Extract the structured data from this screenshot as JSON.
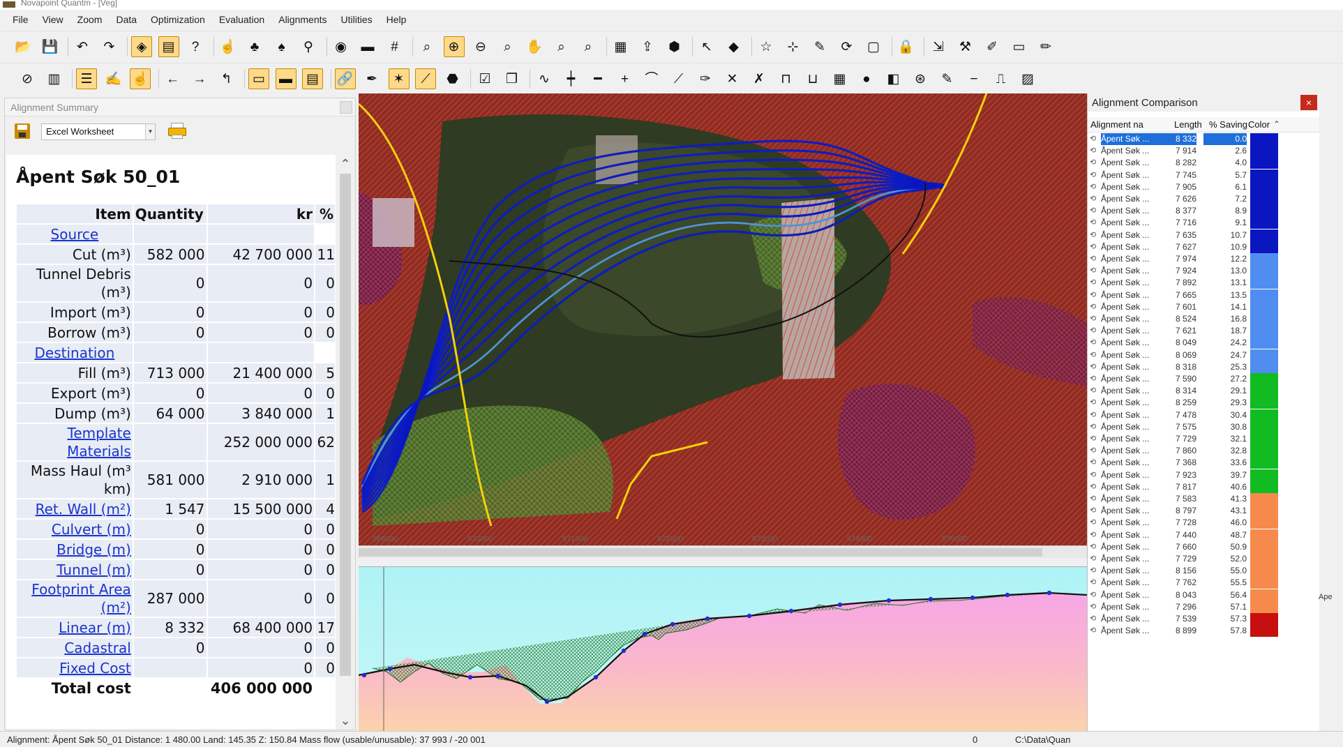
{
  "window": {
    "title": "Novapoint Quantm - [Veg]"
  },
  "menu": [
    "File",
    "View",
    "Zoom",
    "Data",
    "Optimization",
    "Evaluation",
    "Alignments",
    "Utilities",
    "Help"
  ],
  "toolbar1_icons": [
    {
      "name": "open-folder-icon",
      "glyph": "📂"
    },
    {
      "name": "save-disk-icon",
      "glyph": "💾"
    },
    {
      "name": "undo-icon",
      "glyph": "↶"
    },
    {
      "name": "redo-icon",
      "glyph": "↷"
    },
    {
      "name": "layers-icon",
      "glyph": "◈",
      "active": true
    },
    {
      "name": "properties-icon",
      "glyph": "▤",
      "active": true
    },
    {
      "name": "help-icon",
      "glyph": "?"
    },
    {
      "name": "pointer-hand-icon",
      "glyph": "☝"
    },
    {
      "name": "tree-icon",
      "glyph": "♣"
    },
    {
      "name": "tree-add-icon",
      "glyph": "♠"
    },
    {
      "name": "network-icon",
      "glyph": "⚲"
    },
    {
      "name": "zoom-eye-icon",
      "glyph": "◉"
    },
    {
      "name": "ruler-icon",
      "glyph": "▬"
    },
    {
      "name": "grid-icon",
      "glyph": "#"
    },
    {
      "name": "zoom-window-icon",
      "glyph": "⌕"
    },
    {
      "name": "zoom-in-icon",
      "glyph": "⊕",
      "active": true
    },
    {
      "name": "zoom-out-icon",
      "glyph": "⊖"
    },
    {
      "name": "zoom-small-icon",
      "glyph": "⌕"
    },
    {
      "name": "pan-hand-icon",
      "glyph": "✋"
    },
    {
      "name": "zoom-extent-icon",
      "glyph": "⌕"
    },
    {
      "name": "zoom-previous-icon",
      "glyph": "⌕"
    },
    {
      "name": "report-icon",
      "glyph": "▦"
    },
    {
      "name": "export-icon",
      "glyph": "⇪"
    },
    {
      "name": "box-3d-icon",
      "glyph": "⬢"
    },
    {
      "name": "select-arrow-icon",
      "glyph": "↖"
    },
    {
      "name": "eraser-icon",
      "glyph": "◆"
    },
    {
      "name": "star-icon",
      "glyph": "☆"
    },
    {
      "name": "target-icon",
      "glyph": "⊹"
    },
    {
      "name": "pencil-line-icon",
      "glyph": "✎"
    },
    {
      "name": "rotate-icon",
      "glyph": "⟳"
    },
    {
      "name": "frame-icon",
      "glyph": "▢"
    },
    {
      "name": "lock-icon",
      "glyph": "🔒"
    },
    {
      "name": "import-icon",
      "glyph": "⇲"
    },
    {
      "name": "tools-icon",
      "glyph": "⚒"
    },
    {
      "name": "draw-pen-icon",
      "glyph": "✐"
    },
    {
      "name": "blank-sheet-icon",
      "glyph": "▭"
    },
    {
      "name": "ruler-pencil-icon",
      "glyph": "✏"
    }
  ],
  "toolbar2_icons": [
    {
      "name": "no-entry-icon",
      "glyph": "⊘"
    },
    {
      "name": "notebook-icon",
      "glyph": "▥"
    },
    {
      "name": "list-icon",
      "glyph": "☰",
      "active": true
    },
    {
      "name": "pen-doc-icon",
      "glyph": "✍"
    },
    {
      "name": "pointer-doc-icon",
      "glyph": "☝",
      "active": true
    },
    {
      "name": "arrow-left-icon",
      "glyph": "←"
    },
    {
      "name": "arrow-right-icon",
      "glyph": "→"
    },
    {
      "name": "cursor-line-icon",
      "glyph": "↰"
    },
    {
      "name": "profile-panel-icon",
      "glyph": "▭",
      "active": true
    },
    {
      "name": "section-panel-icon",
      "glyph": "▬",
      "active": true
    },
    {
      "name": "plan-panel-icon",
      "glyph": "▤",
      "active": true
    },
    {
      "name": "link-icon",
      "glyph": "🔗",
      "active": true
    },
    {
      "name": "curve-pen-icon",
      "glyph": "✒"
    },
    {
      "name": "multi-alignment-icon",
      "glyph": "✶",
      "active": true
    },
    {
      "name": "alignment-node-icon",
      "glyph": "⟋",
      "active": true
    },
    {
      "name": "surface-icon",
      "glyph": "⬣"
    },
    {
      "name": "check-doc-icon",
      "glyph": "☑"
    },
    {
      "name": "copy-doc-icon",
      "glyph": "❐"
    },
    {
      "name": "wave-line-icon",
      "glyph": "∿"
    },
    {
      "name": "cross-line-icon",
      "glyph": "┿"
    },
    {
      "name": "straight-line-icon",
      "glyph": "━"
    },
    {
      "name": "plus-icon",
      "glyph": "+"
    },
    {
      "name": "arc-icon",
      "glyph": "⌒"
    },
    {
      "name": "slope-icon",
      "glyph": "⟋"
    },
    {
      "name": "diagonal-pen-icon",
      "glyph": "✑"
    },
    {
      "name": "cross-icon",
      "glyph": "✕"
    },
    {
      "name": "x-mark-icon",
      "glyph": "✗"
    },
    {
      "name": "bridge-icon",
      "glyph": "⊓"
    },
    {
      "name": "tunnel-icon",
      "glyph": "⊔"
    },
    {
      "name": "building-icon",
      "glyph": "▦"
    },
    {
      "name": "blob-icon",
      "glyph": "●"
    },
    {
      "name": "wall-icon",
      "glyph": "◧"
    },
    {
      "name": "compass-icon",
      "glyph": "⊛"
    },
    {
      "name": "pencil-small-icon",
      "glyph": "✎"
    },
    {
      "name": "minus-icon",
      "glyph": "−"
    },
    {
      "name": "step-line-icon",
      "glyph": "⎍"
    },
    {
      "name": "gradient-icon",
      "glyph": "▨"
    }
  ],
  "left_panel": {
    "header": "Alignment Summary",
    "format": "Excel Worksheet",
    "title": "Åpent Søk 50_01",
    "columns": {
      "item": "Item",
      "quantity": "Quantity",
      "kr": "kr",
      "pct": "%"
    },
    "rows": [
      {
        "item": "Source",
        "quantity": "",
        "kr": "",
        "pct": "",
        "link": true,
        "section": true
      },
      {
        "item": "Cut (m³)",
        "quantity": "582 000",
        "kr": "42 700 000",
        "pct": "11"
      },
      {
        "item": "Tunnel Debris (m³)",
        "quantity": "0",
        "kr": "0",
        "pct": "0"
      },
      {
        "item": "Import (m³)",
        "quantity": "0",
        "kr": "0",
        "pct": "0"
      },
      {
        "item": "Borrow (m³)",
        "quantity": "0",
        "kr": "0",
        "pct": "0"
      },
      {
        "item": "Destination",
        "quantity": "",
        "kr": "",
        "pct": "",
        "link": true,
        "section": true
      },
      {
        "item": "Fill (m³)",
        "quantity": "713 000",
        "kr": "21 400 000",
        "pct": "5"
      },
      {
        "item": "Export (m³)",
        "quantity": "0",
        "kr": "0",
        "pct": "0"
      },
      {
        "item": "Dump (m³)",
        "quantity": "64 000",
        "kr": "3 840 000",
        "pct": "1"
      },
      {
        "item": "Template Materials",
        "quantity": "",
        "kr": "252 000 000",
        "pct": "62",
        "link": true
      },
      {
        "item": "Mass Haul (m³ km)",
        "quantity": "581 000",
        "kr": "2 910 000",
        "pct": "1"
      },
      {
        "item": "Ret. Wall (m²)",
        "quantity": "1 547",
        "kr": "15 500 000",
        "pct": "4",
        "link": true
      },
      {
        "item": "Culvert (m)",
        "quantity": "0",
        "kr": "0",
        "pct": "0",
        "link": true
      },
      {
        "item": "Bridge (m)",
        "quantity": "0",
        "kr": "0",
        "pct": "0",
        "link": true
      },
      {
        "item": "Tunnel (m)",
        "quantity": "0",
        "kr": "0",
        "pct": "0",
        "link": true
      },
      {
        "item": "Footprint Area (m²)",
        "quantity": "287 000",
        "kr": "0",
        "pct": "0",
        "link": true
      },
      {
        "item": "Linear (m)",
        "quantity": "8 332",
        "kr": "68 400 000",
        "pct": "17",
        "link": true
      },
      {
        "item": "Cadastral",
        "quantity": "0",
        "kr": "0",
        "pct": "0",
        "link": true
      },
      {
        "item": "Fixed Cost",
        "quantity": "",
        "kr": "0",
        "pct": "0",
        "link": true
      }
    ],
    "total": {
      "label": "Total cost",
      "value": "406 000 000"
    }
  },
  "map": {
    "x_ticks": [
      "568000",
      "570000",
      "571000",
      "572000",
      "573000",
      "574000",
      "575000"
    ]
  },
  "comparison": {
    "title": "Alignment Comparison",
    "close_label": "×",
    "columns": {
      "name": "Alignment na",
      "length": "Length",
      "saving": "% Saving",
      "color": "Color"
    },
    "colors": {
      "dark_blue": "#0a16c0",
      "light_blue": "#4f8ef0",
      "green": "#11bb22",
      "orange": "#f58a4c",
      "red": "#c80f0f"
    },
    "rows": [
      {
        "name": "Åpent Søk ...",
        "length": "8 332",
        "saving": "0.0",
        "color": "dark_blue",
        "selected": true
      },
      {
        "name": "Åpent Søk ...",
        "length": "7 914",
        "saving": "2.6",
        "color": "dark_blue"
      },
      {
        "name": "Åpent Søk ...",
        "length": "8 282",
        "saving": "4.0",
        "color": "dark_blue"
      },
      {
        "name": "Åpent Søk ...",
        "length": "7 745",
        "saving": "5.7",
        "color": "dark_blue"
      },
      {
        "name": "Åpent Søk ...",
        "length": "7 905",
        "saving": "6.1",
        "color": "dark_blue"
      },
      {
        "name": "Åpent Søk ...",
        "length": "7 626",
        "saving": "7.2",
        "color": "dark_blue"
      },
      {
        "name": "Åpent Søk ...",
        "length": "8 377",
        "saving": "8.9",
        "color": "dark_blue"
      },
      {
        "name": "Åpent Søk ...",
        "length": "7 716",
        "saving": "9.1",
        "color": "dark_blue"
      },
      {
        "name": "Åpent Søk ...",
        "length": "7 635",
        "saving": "10.7",
        "color": "dark_blue"
      },
      {
        "name": "Åpent Søk ...",
        "length": "7 627",
        "saving": "10.9",
        "color": "dark_blue"
      },
      {
        "name": "Åpent Søk ...",
        "length": "7 974",
        "saving": "12.2",
        "color": "light_blue"
      },
      {
        "name": "Åpent Søk ...",
        "length": "7 924",
        "saving": "13.0",
        "color": "light_blue"
      },
      {
        "name": "Åpent Søk ...",
        "length": "7 892",
        "saving": "13.1",
        "color": "light_blue"
      },
      {
        "name": "Åpent Søk ...",
        "length": "7 665",
        "saving": "13.5",
        "color": "light_blue"
      },
      {
        "name": "Åpent Søk ...",
        "length": "7 601",
        "saving": "14.1",
        "color": "light_blue"
      },
      {
        "name": "Åpent Søk ...",
        "length": "8 524",
        "saving": "16.8",
        "color": "light_blue"
      },
      {
        "name": "Åpent Søk ...",
        "length": "7 621",
        "saving": "18.7",
        "color": "light_blue"
      },
      {
        "name": "Åpent Søk ...",
        "length": "8 049",
        "saving": "24.2",
        "color": "light_blue"
      },
      {
        "name": "Åpent Søk ...",
        "length": "8 069",
        "saving": "24.7",
        "color": "light_blue"
      },
      {
        "name": "Åpent Søk ...",
        "length": "8 318",
        "saving": "25.3",
        "color": "light_blue"
      },
      {
        "name": "Åpent Søk ...",
        "length": "7 590",
        "saving": "27.2",
        "color": "green"
      },
      {
        "name": "Åpent Søk ...",
        "length": "8 314",
        "saving": "29.1",
        "color": "green"
      },
      {
        "name": "Åpent Søk ...",
        "length": "8 259",
        "saving": "29.3",
        "color": "green"
      },
      {
        "name": "Åpent Søk ...",
        "length": "7 478",
        "saving": "30.4",
        "color": "green"
      },
      {
        "name": "Åpent Søk ...",
        "length": "7 575",
        "saving": "30.8",
        "color": "green"
      },
      {
        "name": "Åpent Søk ...",
        "length": "7 729",
        "saving": "32.1",
        "color": "green"
      },
      {
        "name": "Åpent Søk ...",
        "length": "7 860",
        "saving": "32.8",
        "color": "green"
      },
      {
        "name": "Åpent Søk ...",
        "length": "7 368",
        "saving": "33.6",
        "color": "green"
      },
      {
        "name": "Åpent Søk ...",
        "length": "7 923",
        "saving": "39.7",
        "color": "green"
      },
      {
        "name": "Åpent Søk ...",
        "length": "7 817",
        "saving": "40.6",
        "color": "green"
      },
      {
        "name": "Åpent Søk ...",
        "length": "7 583",
        "saving": "41.3",
        "color": "orange"
      },
      {
        "name": "Åpent Søk ...",
        "length": "8 797",
        "saving": "43.1",
        "color": "orange"
      },
      {
        "name": "Åpent Søk ...",
        "length": "7 728",
        "saving": "46.0",
        "color": "orange"
      },
      {
        "name": "Åpent Søk ...",
        "length": "7 440",
        "saving": "48.7",
        "color": "orange"
      },
      {
        "name": "Åpent Søk ...",
        "length": "7 660",
        "saving": "50.9",
        "color": "orange"
      },
      {
        "name": "Åpent Søk ...",
        "length": "7 729",
        "saving": "52.0",
        "color": "orange"
      },
      {
        "name": "Åpent Søk ...",
        "length": "8 156",
        "saving": "55.0",
        "color": "orange"
      },
      {
        "name": "Åpent Søk ...",
        "length": "7 762",
        "saving": "55.5",
        "color": "orange"
      },
      {
        "name": "Åpent Søk ...",
        "length": "8 043",
        "saving": "56.4",
        "color": "orange"
      },
      {
        "name": "Åpent Søk ...",
        "length": "7 296",
        "saving": "57.1",
        "color": "orange"
      },
      {
        "name": "Åpent Søk ...",
        "length": "7 539",
        "saving": "57.3",
        "color": "red"
      },
      {
        "name": "Åpent Søk ...",
        "length": "8 899",
        "saving": "57.8",
        "color": "red"
      }
    ],
    "outside_label": "Ape"
  },
  "statusbar": {
    "text": "Alignment: Åpent Søk 50_01   Distance: 1 480.00   Land: 145.35   Z: 150.84   Mass flow (usable/unusable): 37 993 / -20 001",
    "right_value": "0",
    "path": "C:\\Data\\Quan"
  }
}
